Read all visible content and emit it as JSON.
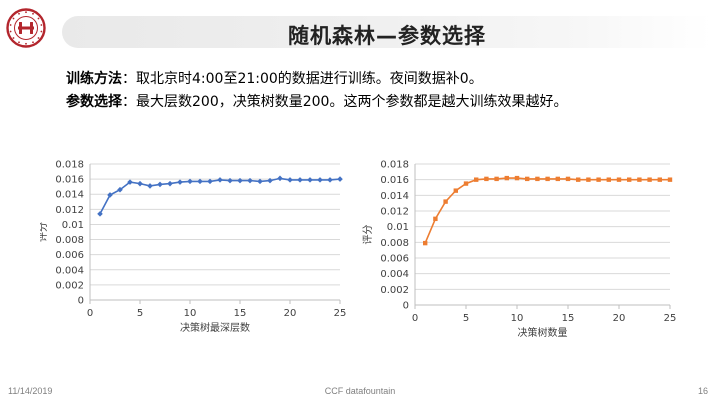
{
  "slide": {
    "title": "随机森林—参数选择",
    "bullets": [
      {
        "label": "训练方法",
        "sep": "：",
        "text": "取北京时4:00至21:00的数据进行训练。夜间数据补0。"
      },
      {
        "label": "参数选择",
        "sep": "：",
        "text": "最大层数200，决策树数量200。这两个参数都是越大训练效果越好。"
      }
    ]
  },
  "footer": {
    "date": "11/14/2019",
    "source": "CCF datafountain",
    "page": "16"
  },
  "logo": {
    "icon": "university-seal-icon",
    "color": "#b3262d"
  },
  "chart_data": [
    {
      "type": "line",
      "xlabel": "决策树最深层数",
      "ylabel": "评分",
      "xlim": [
        0,
        25
      ],
      "ylim": [
        0,
        0.018
      ],
      "xticks": [
        "0",
        "5",
        "10",
        "15",
        "20",
        "25"
      ],
      "yticks": [
        "0",
        "0.002",
        "0.004",
        "0.006",
        "0.008",
        "0.01",
        "0.012",
        "0.014",
        "0.016",
        "0.018"
      ],
      "marker": "diamond",
      "color": "#4472c4",
      "grid": true,
      "x": [
        1,
        2,
        3,
        4,
        5,
        6,
        7,
        8,
        9,
        10,
        11,
        12,
        13,
        14,
        15,
        16,
        17,
        18,
        19,
        20,
        21,
        22,
        23,
        24,
        25
      ],
      "y": [
        0.0114,
        0.0139,
        0.0146,
        0.0156,
        0.0154,
        0.0151,
        0.0153,
        0.0154,
        0.0156,
        0.0157,
        0.0157,
        0.0157,
        0.0159,
        0.0158,
        0.0158,
        0.0158,
        0.0157,
        0.0158,
        0.0161,
        0.0159,
        0.0159,
        0.0159,
        0.0159,
        0.0159,
        0.016
      ]
    },
    {
      "type": "line",
      "xlabel": "决策树数量",
      "ylabel": "评分",
      "xlim": [
        0,
        25
      ],
      "ylim": [
        0,
        0.018
      ],
      "xticks": [
        "0",
        "5",
        "10",
        "15",
        "20",
        "25"
      ],
      "yticks": [
        "0",
        "0.002",
        "0.004",
        "0.006",
        "0.008",
        "0.01",
        "0.012",
        "0.014",
        "0.016",
        "0.018"
      ],
      "marker": "square",
      "color": "#ed7d31",
      "grid": true,
      "x": [
        1,
        2,
        3,
        4,
        5,
        6,
        7,
        8,
        9,
        10,
        11,
        12,
        13,
        14,
        15,
        16,
        17,
        18,
        19,
        20,
        21,
        22,
        23,
        24,
        25
      ],
      "y": [
        0.0079,
        0.011,
        0.0132,
        0.0146,
        0.0155,
        0.016,
        0.0161,
        0.0161,
        0.0162,
        0.0162,
        0.0161,
        0.0161,
        0.0161,
        0.0161,
        0.0161,
        0.016,
        0.016,
        0.016,
        0.016,
        0.016,
        0.016,
        0.016,
        0.016,
        0.016,
        0.016
      ]
    }
  ]
}
